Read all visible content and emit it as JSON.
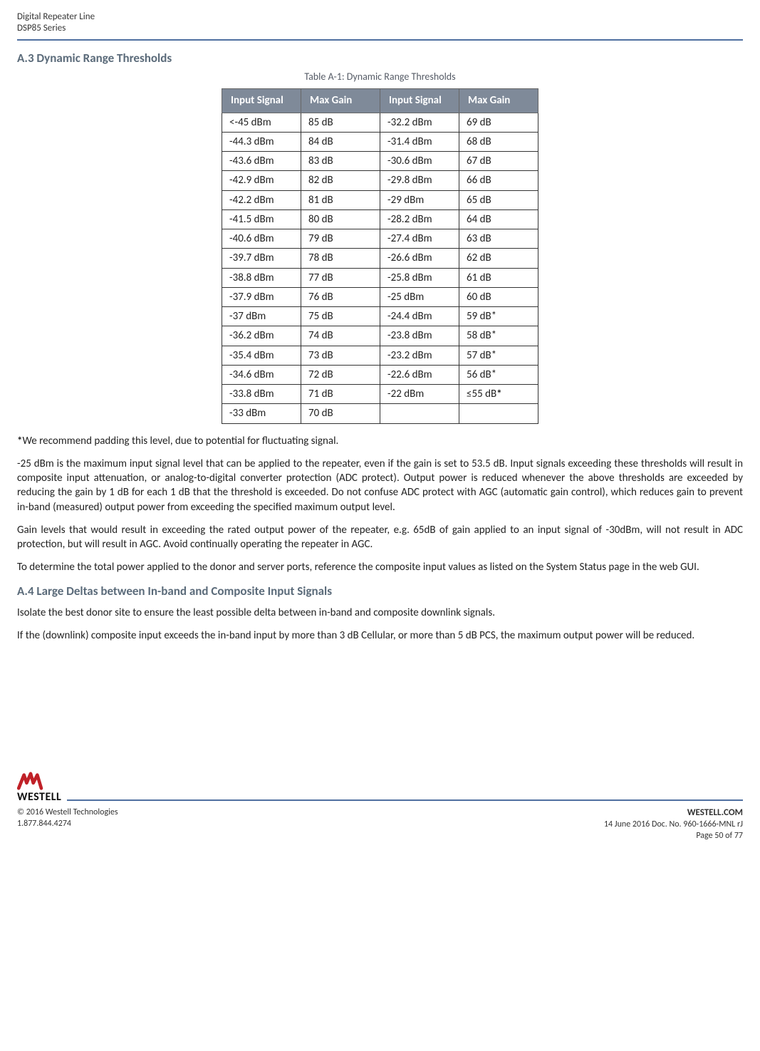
{
  "header": {
    "line1": "Digital Repeater Line",
    "line2": "DSP85 Series"
  },
  "section_a3": {
    "title": "A.3 Dynamic Range Thresholds",
    "table_caption": "Table A-1: Dynamic Range Thresholds",
    "columns": [
      "Input Signal",
      "Max Gain",
      "Input Signal",
      "Max Gain"
    ],
    "rows": [
      [
        "<-45 dBm",
        "85 dB",
        "-32.2 dBm",
        "69 dB"
      ],
      [
        "-44.3 dBm",
        "84 dB",
        "-31.4 dBm",
        "68 dB"
      ],
      [
        "-43.6 dBm",
        "83 dB",
        "-30.6 dBm",
        "67 dB"
      ],
      [
        "-42.9 dBm",
        "82 dB",
        "-29.8 dBm",
        "66 dB"
      ],
      [
        "-42.2 dBm",
        "81 dB",
        "-29 dBm",
        "65 dB"
      ],
      [
        "-41.5 dBm",
        "80 dB",
        "-28.2 dBm",
        "64 dB"
      ],
      [
        "-40.6 dBm",
        "79 dB",
        "-27.4 dBm",
        "63 dB"
      ],
      [
        "-39.7 dBm",
        "78 dB",
        "-26.6 dBm",
        "62 dB"
      ],
      [
        "-38.8 dBm",
        "77 dB",
        "-25.8 dBm",
        "61 dB"
      ],
      [
        "-37.9 dBm",
        "76 dB",
        "-25 dBm",
        "60 dB"
      ],
      [
        "-37 dBm",
        "75 dB",
        "-24.4 dBm",
        "59 dB*"
      ],
      [
        "-36.2 dBm",
        "74 dB",
        "-23.8 dBm",
        "58 dB*"
      ],
      [
        "-35.4 dBm",
        "73 dB",
        "-23.2 dBm",
        "57 dB*"
      ],
      [
        "-34.6 dBm",
        "72 dB",
        "-22.6 dBm",
        "56 dB*"
      ],
      [
        "-33.8 dBm",
        "71 dB",
        "-22 dBm",
        "≤55 dB*"
      ],
      [
        "-33 dBm",
        "70 dB",
        "",
        ""
      ]
    ],
    "para1": "*We recommend padding this level, due to potential for fluctuating signal.",
    "para2": "-25 dBm is the maximum input signal level that can be applied to the repeater, even if the gain is set to 53.5 dB. Input signals exceeding these thresholds will result in composite input attenuation, or analog-to-digital converter protection (ADC protect). Output power is reduced whenever the above thresholds are exceeded by reducing the gain by 1 dB for each 1 dB that the threshold is exceeded. Do not confuse ADC protect with AGC (automatic gain control), which reduces gain to prevent in-band (measured) output power from exceeding the specified maximum output level.",
    "para3": "Gain levels that would result in exceeding the rated output power of the repeater, e.g. 65dB of gain applied to an input signal of -30dBm, will not result in ADC protection, but will result in AGC. Avoid continually operating the repeater in AGC.",
    "para4": "To determine the total power applied to the donor and server ports, reference the composite input values as listed on the System Status page in the web GUI."
  },
  "section_a4": {
    "title": "A.4 Large Deltas between In-band and Composite Input Signals",
    "para1": "Isolate the best donor site to ensure the least possible delta between in-band and composite downlink signals.",
    "para2": "If the (downlink) composite input exceeds the in-band input by more than 3 dB Cellular, or more than 5 dB PCS, the maximum output power will be reduced."
  },
  "footer": {
    "logo_text": "WESTELL",
    "site": "WESTELL.COM",
    "copyright": "© 2016 Westell Technologies",
    "docline": "14 June 2016 Doc. No. 960-1666-MNL rJ",
    "phone": "1.877.844.4274",
    "page": "Page 50 of 77",
    "colors": {
      "rule": "#4f6fa0",
      "logo_red": "#c02128"
    }
  }
}
